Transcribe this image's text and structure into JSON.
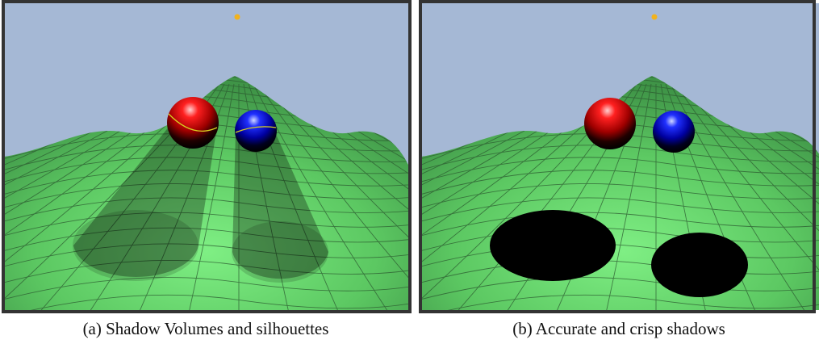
{
  "panels": [
    {
      "caption": "(a)  Shadow Volumes and silhouettes"
    },
    {
      "caption": "(b)  Accurate and crisp shadows"
    }
  ]
}
